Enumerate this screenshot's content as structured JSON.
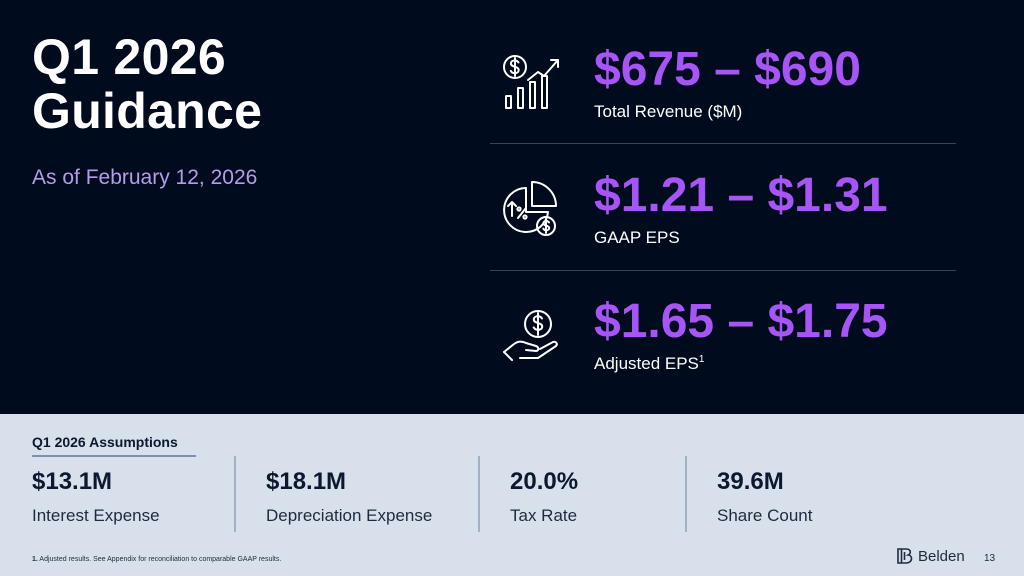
{
  "header": {
    "title_line1": "Q1 2026",
    "title_line2": "Guidance",
    "subtitle": "As of February 12, 2026"
  },
  "metrics": [
    {
      "icon": "revenue-growth-icon",
      "value": "$675 – $690",
      "label": "Total Revenue ($M)",
      "sup": ""
    },
    {
      "icon": "eps-pie-chart-icon",
      "value": "$1.21 – $1.31",
      "label": "GAAP EPS",
      "sup": ""
    },
    {
      "icon": "hand-coin-icon",
      "value": "$1.65 – $1.75",
      "label": "Adjusted EPS",
      "sup": "1"
    }
  ],
  "assumptions": {
    "title": "Q1 2026 Assumptions",
    "items": [
      {
        "value": "$13.1M",
        "label": "Interest Expense"
      },
      {
        "value": "$18.1M",
        "label": "Depreciation Expense"
      },
      {
        "value": "20.0%",
        "label": "Tax Rate"
      },
      {
        "value": "39.6M",
        "label": "Share Count"
      }
    ]
  },
  "footer": {
    "footnote_num": "1.",
    "footnote_text": " Adjusted results.  See Appendix for reconciliation to comparable GAAP results.",
    "brand": "Belden",
    "page_number": "13"
  },
  "colors": {
    "background": "#000b1d",
    "accent": "#a855f7",
    "subtitle": "#b69ce6",
    "panel": "#d8e0eb"
  }
}
